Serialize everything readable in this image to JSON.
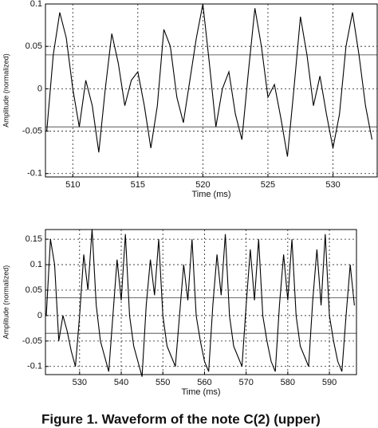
{
  "caption": "Figure 1. Waveform of the note C(2) (upper)",
  "chart_data": [
    {
      "type": "line",
      "xlabel": "Time (ms)",
      "ylabel": "Amplitude (normalized)",
      "xlim": [
        507.9,
        533.4
      ],
      "ylim": [
        -0.104,
        0.1
      ],
      "xticks": [
        510,
        515,
        520,
        525,
        530
      ],
      "yticks": [
        0.1,
        0.05,
        0,
        -0.05,
        -0.1
      ],
      "grid": true,
      "color": "#000000",
      "hlines": [
        0.04,
        -0.045
      ],
      "x": [
        508,
        508.5,
        509,
        509.5,
        510,
        510.5,
        511,
        511.5,
        512,
        512.5,
        513,
        513.5,
        514,
        514.5,
        515,
        515.5,
        516,
        516.5,
        517,
        517.5,
        518,
        518.5,
        519,
        519.5,
        520,
        520.5,
        521,
        521.5,
        522,
        522.5,
        523,
        523.5,
        524,
        524.5,
        525,
        525.5,
        526,
        526.5,
        527,
        527.5,
        528,
        528.5,
        529,
        529.5,
        530,
        530.5,
        531,
        531.5,
        532,
        532.5,
        533
      ],
      "values": [
        -0.05,
        0.04,
        0.09,
        0.06,
        0.0,
        -0.045,
        0.01,
        -0.02,
        -0.075,
        0.0,
        0.065,
        0.03,
        -0.02,
        0.01,
        0.02,
        -0.02,
        -0.07,
        -0.02,
        0.07,
        0.05,
        -0.01,
        -0.04,
        0.01,
        0.06,
        0.1,
        0.03,
        -0.045,
        0.0,
        0.02,
        -0.03,
        -0.06,
        0.02,
        0.095,
        0.05,
        -0.01,
        0.005,
        -0.035,
        -0.08,
        0.0,
        0.085,
        0.04,
        -0.02,
        0.015,
        -0.03,
        -0.07,
        -0.03,
        0.05,
        0.09,
        0.04,
        -0.02,
        -0.06
      ]
    },
    {
      "type": "line",
      "xlabel": "Time (ms)",
      "ylabel": "Amplitude (normalized)",
      "xlim": [
        521.8,
        596.5
      ],
      "ylim": [
        -0.116,
        0.169
      ],
      "xticks": [
        530,
        540,
        550,
        560,
        570,
        580,
        590
      ],
      "yticks": [
        0.15,
        0.1,
        0.05,
        0,
        -0.05,
        -0.1
      ],
      "grid": true,
      "color": "#000000",
      "hlines": [
        0.035,
        -0.035
      ],
      "x": [
        522,
        523,
        524,
        525,
        526,
        527,
        528,
        529,
        530,
        531,
        532,
        533,
        534,
        535,
        536,
        537,
        538,
        539,
        540,
        541,
        542,
        543,
        544,
        545,
        546,
        547,
        548,
        549,
        550,
        551,
        552,
        553,
        554,
        555,
        556,
        557,
        558,
        559,
        560,
        561,
        562,
        563,
        564,
        565,
        566,
        567,
        568,
        569,
        570,
        571,
        572,
        573,
        574,
        575,
        576,
        577,
        578,
        579,
        580,
        581,
        582,
        583,
        584,
        585,
        586,
        587,
        588,
        589,
        590,
        591,
        592,
        593,
        594,
        595,
        596
      ],
      "values": [
        0.0,
        0.15,
        0.1,
        -0.05,
        0.0,
        -0.03,
        -0.07,
        -0.1,
        0.0,
        0.12,
        0.05,
        0.17,
        0.02,
        -0.05,
        -0.08,
        -0.11,
        0.0,
        0.11,
        0.03,
        0.16,
        0.0,
        -0.06,
        -0.09,
        -0.12,
        0.02,
        0.11,
        0.04,
        0.15,
        0.0,
        -0.06,
        -0.08,
        -0.1,
        0.0,
        0.1,
        0.03,
        0.15,
        0.0,
        -0.05,
        -0.09,
        -0.11,
        0.02,
        0.12,
        0.04,
        0.16,
        0.0,
        -0.06,
        -0.08,
        -0.1,
        0.02,
        0.13,
        0.03,
        0.15,
        0.0,
        -0.05,
        -0.09,
        -0.11,
        0.02,
        0.12,
        0.03,
        0.15,
        0.0,
        -0.06,
        -0.08,
        -0.1,
        0.03,
        0.13,
        0.02,
        0.16,
        0.0,
        -0.05,
        -0.09,
        -0.11,
        0.0,
        0.1,
        0.02
      ]
    }
  ]
}
